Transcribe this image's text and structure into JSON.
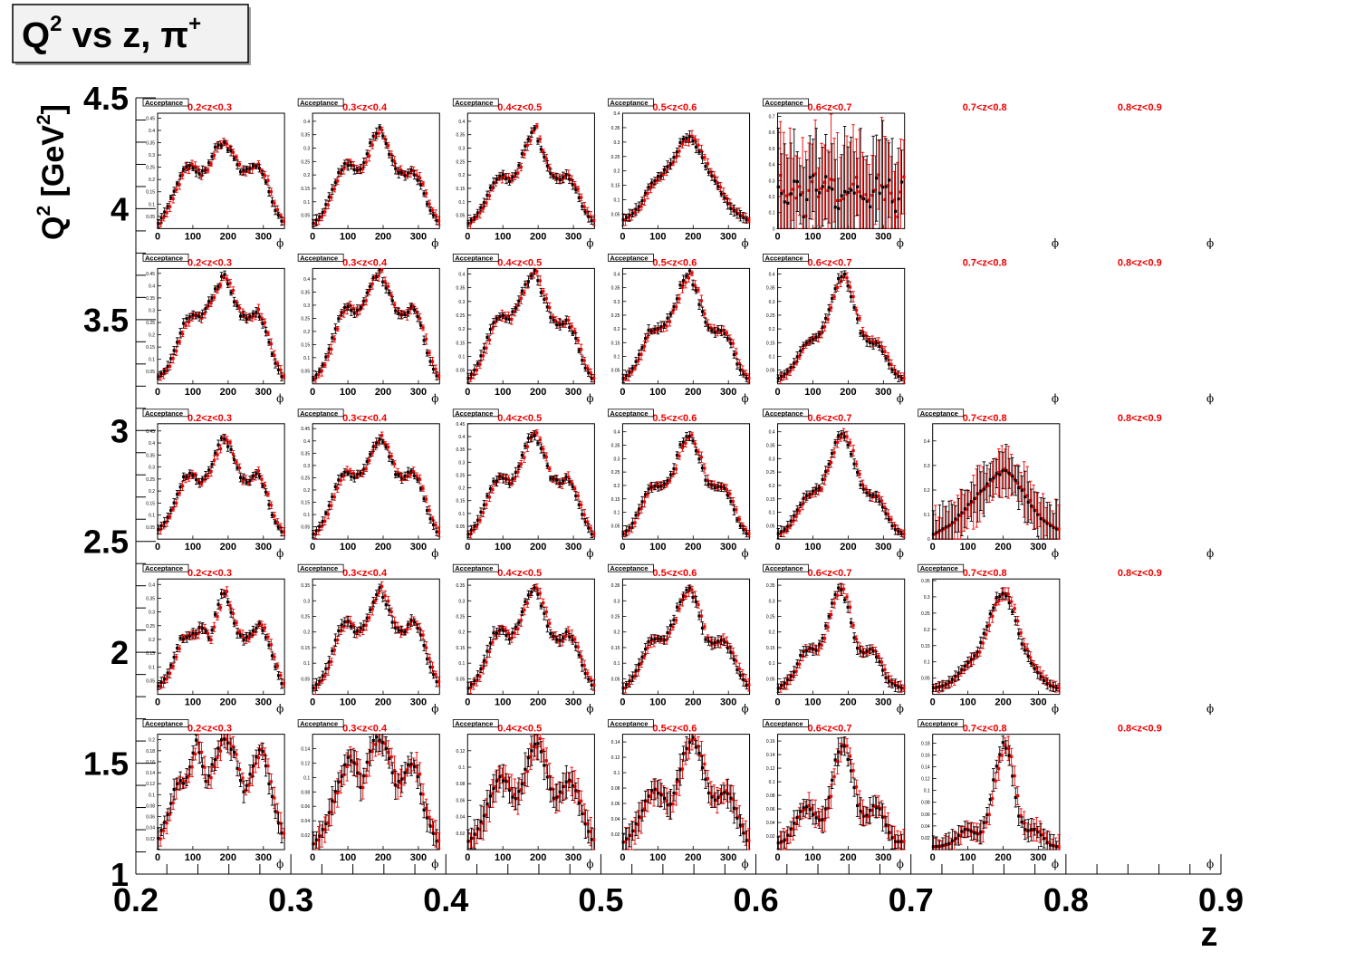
{
  "title": {
    "base": "Q",
    "sup": "2",
    "rest": " vs z, π",
    "sup2": "+"
  },
  "axes": {
    "x_label": "z",
    "y_label_parts": [
      "Q",
      "2",
      " [GeV",
      "2",
      "]"
    ],
    "x_ticks": [
      "0.2",
      "0.3",
      "0.4",
      "0.5",
      "0.6",
      "0.7",
      "0.8",
      "0.9"
    ],
    "y_ticks": [
      "1",
      "1.5",
      "2",
      "2.5",
      "3",
      "3.5",
      "4",
      "4.5"
    ]
  },
  "panel_labels": {
    "tag": "Acceptance",
    "phi_symbol": "ϕ",
    "phi_ticks": [
      "0",
      "100",
      "200",
      "300"
    ],
    "z_bins": [
      "0.2<z<0.3",
      "0.3<z<0.4",
      "0.4<z<0.5",
      "0.5<z<0.6",
      "0.6<z<0.7",
      "0.7<z<0.8",
      "0.8<z<0.9"
    ]
  },
  "colors": {
    "series_black": "#000000",
    "series_red": "#ee0000",
    "label_red": "#ee0000",
    "title_box_bg": "#f2f2f2"
  },
  "chart_data": {
    "type": "scatter",
    "x_axis": {
      "label": "z",
      "range": [
        0.2,
        0.9
      ]
    },
    "y_axis": {
      "label": "Q2 [GeV2]",
      "range": [
        1,
        4.5
      ]
    },
    "subplot_x": {
      "label": "ϕ",
      "range": [
        0,
        360
      ]
    },
    "series_colors": [
      "#000000",
      "#ee0000"
    ],
    "panels": [
      {
        "q2_bin": 0,
        "z_bin": 0,
        "shape": "modulated",
        "ymax": 0.21,
        "yticks": [
          "0.02",
          "0.04",
          "0.06",
          "0.08",
          "0.1",
          "0.12",
          "0.14",
          "0.16",
          "0.18",
          "0.2"
        ],
        "points": [
          0.02,
          0.045,
          0.07,
          0.115,
          0.125,
          0.12,
          0.155,
          0.2,
          0.16,
          0.12,
          0.15,
          0.18,
          0.2,
          0.198,
          0.18,
          0.14,
          0.105,
          0.13,
          0.165,
          0.19,
          0.155,
          0.105,
          0.06,
          0.03
        ]
      },
      {
        "q2_bin": 0,
        "z_bin": 1,
        "shape": "modulated",
        "ymax": 0.16,
        "yticks": [
          "0.02",
          "0.04",
          "0.06",
          "0.08",
          "0.1",
          "0.12",
          "0.14"
        ],
        "points": [
          0.008,
          0.02,
          0.04,
          0.075,
          0.1,
          0.13,
          0.12,
          0.085,
          0.13,
          0.152,
          0.15,
          0.13,
          0.09,
          0.1,
          0.12,
          0.115,
          0.06,
          0.035,
          0.012
        ]
      },
      {
        "q2_bin": 0,
        "z_bin": 2,
        "shape": "modulated",
        "ymax": 0.14,
        "yticks": [
          "0.02",
          "0.04",
          "0.06",
          "0.08",
          "0.1",
          "0.12"
        ],
        "points": [
          0.01,
          0.02,
          0.04,
          0.07,
          0.09,
          0.08,
          0.06,
          0.08,
          0.12,
          0.132,
          0.1,
          0.06,
          0.07,
          0.085,
          0.07,
          0.035,
          0.012
        ]
      },
      {
        "q2_bin": 0,
        "z_bin": 3,
        "shape": "modulated",
        "ymax": 0.15,
        "yticks": [
          "0.02",
          "0.04",
          "0.06",
          "0.08",
          "0.1",
          "0.12",
          "0.14"
        ],
        "points": [
          0.01,
          0.02,
          0.04,
          0.065,
          0.08,
          0.07,
          0.055,
          0.09,
          0.13,
          0.145,
          0.12,
          0.075,
          0.065,
          0.078,
          0.065,
          0.035,
          0.012
        ]
      },
      {
        "q2_bin": 0,
        "z_bin": 4,
        "shape": "modulated",
        "ymax": 0.17,
        "yticks": [
          "0.02",
          "0.04",
          "0.06",
          "0.08",
          "0.1",
          "0.12",
          "0.14",
          "0.16"
        ],
        "points": [
          0.01,
          0.015,
          0.035,
          0.055,
          0.065,
          0.05,
          0.04,
          0.08,
          0.14,
          0.158,
          0.12,
          0.06,
          0.045,
          0.065,
          0.06,
          0.03,
          0.012,
          0.012
        ]
      },
      {
        "q2_bin": 0,
        "z_bin": 5,
        "shape": "modulated",
        "ymax": 0.195,
        "yticks": [
          "0.02",
          "0.04",
          "0.06",
          "0.08",
          "0.1",
          "0.12",
          "0.14",
          "0.16",
          "0.18"
        ],
        "points": [
          0.005,
          0.006,
          0.01,
          0.02,
          0.035,
          0.03,
          0.025,
          0.06,
          0.13,
          0.18,
          0.15,
          0.06,
          0.03,
          0.035,
          0.025,
          0.008,
          0.005
        ]
      },
      {
        "q2_bin": 1,
        "z_bin": 0,
        "shape": "peaks",
        "ymax": 0.42,
        "yticks": [
          "0.05",
          "0.1",
          "0.15",
          "0.2",
          "0.25",
          "0.3",
          "0.35",
          "0.4"
        ],
        "points": [
          0.03,
          0.06,
          0.12,
          0.2,
          0.21,
          0.22,
          0.25,
          0.2,
          0.3,
          0.38,
          0.3,
          0.22,
          0.2,
          0.23,
          0.26,
          0.2,
          0.11,
          0.04
        ]
      },
      {
        "q2_bin": 1,
        "z_bin": 1,
        "shape": "peaks",
        "ymax": 0.37,
        "yticks": [
          "0.05",
          "0.1",
          "0.15",
          "0.2",
          "0.25",
          "0.3",
          "0.35"
        ],
        "points": [
          0.02,
          0.05,
          0.11,
          0.2,
          0.24,
          0.2,
          0.21,
          0.28,
          0.35,
          0.28,
          0.21,
          0.2,
          0.24,
          0.2,
          0.1,
          0.04
        ]
      },
      {
        "q2_bin": 1,
        "z_bin": 2,
        "shape": "peaks",
        "ymax": 0.37,
        "yticks": [
          "0.05",
          "0.1",
          "0.15",
          "0.2",
          "0.25",
          "0.3",
          "0.35"
        ],
        "points": [
          0.02,
          0.05,
          0.11,
          0.19,
          0.21,
          0.18,
          0.22,
          0.3,
          0.35,
          0.28,
          0.19,
          0.17,
          0.2,
          0.16,
          0.08,
          0.03
        ]
      },
      {
        "q2_bin": 1,
        "z_bin": 3,
        "shape": "peaks",
        "ymax": 0.37,
        "yticks": [
          "0.05",
          "0.1",
          "0.15",
          "0.2",
          "0.25",
          "0.3",
          "0.35"
        ],
        "points": [
          0.02,
          0.05,
          0.1,
          0.17,
          0.18,
          0.17,
          0.23,
          0.31,
          0.35,
          0.28,
          0.18,
          0.16,
          0.18,
          0.14,
          0.07,
          0.03
        ]
      },
      {
        "q2_bin": 1,
        "z_bin": 4,
        "shape": "peaks",
        "ymax": 0.37,
        "yticks": [
          "0.05",
          "0.1",
          "0.15",
          "0.2",
          "0.25",
          "0.3",
          "0.35"
        ],
        "points": [
          0.02,
          0.04,
          0.07,
          0.13,
          0.15,
          0.14,
          0.2,
          0.3,
          0.35,
          0.28,
          0.16,
          0.13,
          0.15,
          0.11,
          0.05,
          0.03,
          0.02
        ]
      },
      {
        "q2_bin": 1,
        "z_bin": 5,
        "shape": "peaks",
        "ymax": 0.355,
        "yticks": [
          "0.05",
          "0.1",
          "0.15",
          "0.2",
          "0.25",
          "0.3",
          "0.35"
        ],
        "points": [
          0.02,
          0.025,
          0.04,
          0.07,
          0.1,
          0.13,
          0.2,
          0.29,
          0.32,
          0.26,
          0.16,
          0.1,
          0.06,
          0.03,
          0.02
        ]
      },
      {
        "q2_bin": 2,
        "z_bin": 0,
        "shape": "peaks",
        "ymax": 0.48,
        "yticks": [
          "0.05",
          "0.1",
          "0.15",
          "0.2",
          "0.25",
          "0.3",
          "0.35",
          "0.4",
          "0.45"
        ],
        "points": [
          0.04,
          0.08,
          0.16,
          0.25,
          0.28,
          0.23,
          0.27,
          0.36,
          0.43,
          0.35,
          0.25,
          0.24,
          0.28,
          0.2,
          0.08,
          0.03
        ]
      },
      {
        "q2_bin": 2,
        "z_bin": 1,
        "shape": "peaks",
        "ymax": 0.47,
        "yticks": [
          "0.05",
          "0.1",
          "0.15",
          "0.2",
          "0.25",
          "0.3",
          "0.35",
          "0.4",
          "0.45"
        ],
        "points": [
          0.02,
          0.06,
          0.14,
          0.24,
          0.28,
          0.25,
          0.27,
          0.36,
          0.42,
          0.36,
          0.27,
          0.25,
          0.28,
          0.22,
          0.1,
          0.03
        ]
      },
      {
        "q2_bin": 2,
        "z_bin": 2,
        "shape": "peaks",
        "ymax": 0.45,
        "yticks": [
          "0.05",
          "0.1",
          "0.15",
          "0.2",
          "0.25",
          "0.3",
          "0.35",
          "0.4",
          "0.45"
        ],
        "points": [
          0.02,
          0.06,
          0.14,
          0.22,
          0.25,
          0.22,
          0.27,
          0.37,
          0.42,
          0.34,
          0.24,
          0.22,
          0.24,
          0.18,
          0.08,
          0.02
        ]
      },
      {
        "q2_bin": 2,
        "z_bin": 3,
        "shape": "peaks",
        "ymax": 0.43,
        "yticks": [
          "0.05",
          "0.1",
          "0.15",
          "0.2",
          "0.25",
          "0.3",
          "0.35",
          "0.4"
        ],
        "points": [
          0.02,
          0.05,
          0.12,
          0.19,
          0.2,
          0.2,
          0.25,
          0.35,
          0.4,
          0.32,
          0.22,
          0.19,
          0.2,
          0.15,
          0.06,
          0.02
        ]
      },
      {
        "q2_bin": 2,
        "z_bin": 4,
        "shape": "peaks",
        "ymax": 0.43,
        "yticks": [
          "0.05",
          "0.1",
          "0.15",
          "0.2",
          "0.25",
          "0.3",
          "0.35",
          "0.4"
        ],
        "points": [
          0.02,
          0.04,
          0.09,
          0.15,
          0.17,
          0.19,
          0.27,
          0.37,
          0.4,
          0.31,
          0.2,
          0.16,
          0.16,
          0.1,
          0.04,
          0.02
        ]
      },
      {
        "q2_bin": 2,
        "z_bin": 5,
        "shape": "peaks",
        "ymax": 0.47,
        "yticks": [
          "0",
          "0.1",
          "0.2",
          "0.3",
          "0.4"
        ],
        "points": [
          0.02,
          0.04,
          0.06,
          0.1,
          0.14,
          0.18,
          0.22,
          0.26,
          0.28,
          0.25,
          0.2,
          0.14,
          0.09,
          0.06,
          0.04
        ]
      },
      {
        "q2_bin": 3,
        "z_bin": 0,
        "shape": "peaks",
        "ymax": 0.47,
        "yticks": [
          "0.05",
          "0.1",
          "0.15",
          "0.2",
          "0.25",
          "0.3",
          "0.35",
          "0.4",
          "0.45"
        ],
        "points": [
          0.03,
          0.06,
          0.14,
          0.24,
          0.28,
          0.27,
          0.32,
          0.39,
          0.44,
          0.36,
          0.28,
          0.26,
          0.3,
          0.22,
          0.1,
          0.03
        ]
      },
      {
        "q2_bin": 3,
        "z_bin": 1,
        "shape": "peaks",
        "ymax": 0.44,
        "yticks": [
          "0.05",
          "0.1",
          "0.15",
          "0.2",
          "0.25",
          "0.3",
          "0.35",
          "0.4"
        ],
        "points": [
          0.02,
          0.06,
          0.14,
          0.25,
          0.3,
          0.27,
          0.3,
          0.39,
          0.43,
          0.36,
          0.28,
          0.26,
          0.3,
          0.23,
          0.1,
          0.03
        ]
      },
      {
        "q2_bin": 3,
        "z_bin": 2,
        "shape": "peaks",
        "ymax": 0.42,
        "yticks": [
          "0.05",
          "0.1",
          "0.15",
          "0.2",
          "0.25",
          "0.3",
          "0.35",
          "0.4"
        ],
        "points": [
          0.02,
          0.06,
          0.14,
          0.22,
          0.25,
          0.24,
          0.29,
          0.37,
          0.41,
          0.33,
          0.24,
          0.21,
          0.23,
          0.17,
          0.07,
          0.02
        ]
      },
      {
        "q2_bin": 3,
        "z_bin": 3,
        "shape": "peaks",
        "ymax": 0.42,
        "yticks": [
          "0.05",
          "0.1",
          "0.15",
          "0.2",
          "0.25",
          "0.3",
          "0.35",
          "0.4"
        ],
        "points": [
          0.02,
          0.05,
          0.11,
          0.19,
          0.2,
          0.21,
          0.27,
          0.36,
          0.41,
          0.32,
          0.22,
          0.19,
          0.2,
          0.15,
          0.06,
          0.02
        ]
      },
      {
        "q2_bin": 3,
        "z_bin": 4,
        "shape": "peaks",
        "ymax": 0.42,
        "yticks": [
          "0.05",
          "0.1",
          "0.15",
          "0.2",
          "0.25",
          "0.3",
          "0.35",
          "0.4"
        ],
        "points": [
          0.02,
          0.04,
          0.08,
          0.14,
          0.16,
          0.18,
          0.26,
          0.36,
          0.4,
          0.3,
          0.19,
          0.15,
          0.15,
          0.1,
          0.04,
          0.02
        ]
      },
      {
        "q2_bin": 4,
        "z_bin": 0,
        "shape": "peaks",
        "ymax": 0.47,
        "yticks": [
          "0.05",
          "0.1",
          "0.15",
          "0.2",
          "0.25",
          "0.3",
          "0.35",
          "0.4",
          "0.45"
        ],
        "points": [
          0.02,
          0.08,
          0.16,
          0.24,
          0.26,
          0.22,
          0.25,
          0.34,
          0.35,
          0.3,
          0.23,
          0.24,
          0.26,
          0.2,
          0.09,
          0.03
        ]
      },
      {
        "q2_bin": 4,
        "z_bin": 1,
        "shape": "peaks",
        "ymax": 0.43,
        "yticks": [
          "0.05",
          "0.1",
          "0.15",
          "0.2",
          "0.25",
          "0.3",
          "0.35",
          "0.4"
        ],
        "points": [
          0.02,
          0.05,
          0.12,
          0.2,
          0.25,
          0.22,
          0.23,
          0.32,
          0.38,
          0.3,
          0.22,
          0.2,
          0.22,
          0.17,
          0.08,
          0.03
        ]
      },
      {
        "q2_bin": 4,
        "z_bin": 2,
        "shape": "peaks",
        "ymax": 0.43,
        "yticks": [
          "0.05",
          "0.1",
          "0.15",
          "0.2",
          "0.25",
          "0.3",
          "0.35",
          "0.4"
        ],
        "points": [
          0.02,
          0.05,
          0.1,
          0.17,
          0.2,
          0.18,
          0.22,
          0.32,
          0.38,
          0.28,
          0.2,
          0.18,
          0.2,
          0.15,
          0.07,
          0.03
        ]
      },
      {
        "q2_bin": 4,
        "z_bin": 3,
        "shape": "peaks",
        "ymax": 0.4,
        "yticks": [
          "0.05",
          "0.1",
          "0.15",
          "0.2",
          "0.25",
          "0.3",
          "0.35",
          "0.4"
        ],
        "points": [
          0.03,
          0.05,
          0.08,
          0.14,
          0.17,
          0.2,
          0.24,
          0.3,
          0.32,
          0.28,
          0.22,
          0.17,
          0.12,
          0.07,
          0.05,
          0.03
        ]
      },
      {
        "q2_bin": 4,
        "z_bin": 4,
        "shape": "noisy",
        "ymax": 0.72,
        "yticks": [
          "0",
          "0.1",
          "0.2",
          "0.3",
          "0.4",
          "0.5",
          "0.6",
          "0.7"
        ],
        "points": [
          0.28,
          0.15,
          0.2,
          0.3,
          0.1,
          0.35,
          0.2,
          0.25,
          0.3,
          0.15,
          0.2,
          0.3,
          0.25,
          0.2,
          0.15,
          0.35,
          0.2,
          0.25,
          0.1,
          0.3
        ]
      }
    ]
  }
}
